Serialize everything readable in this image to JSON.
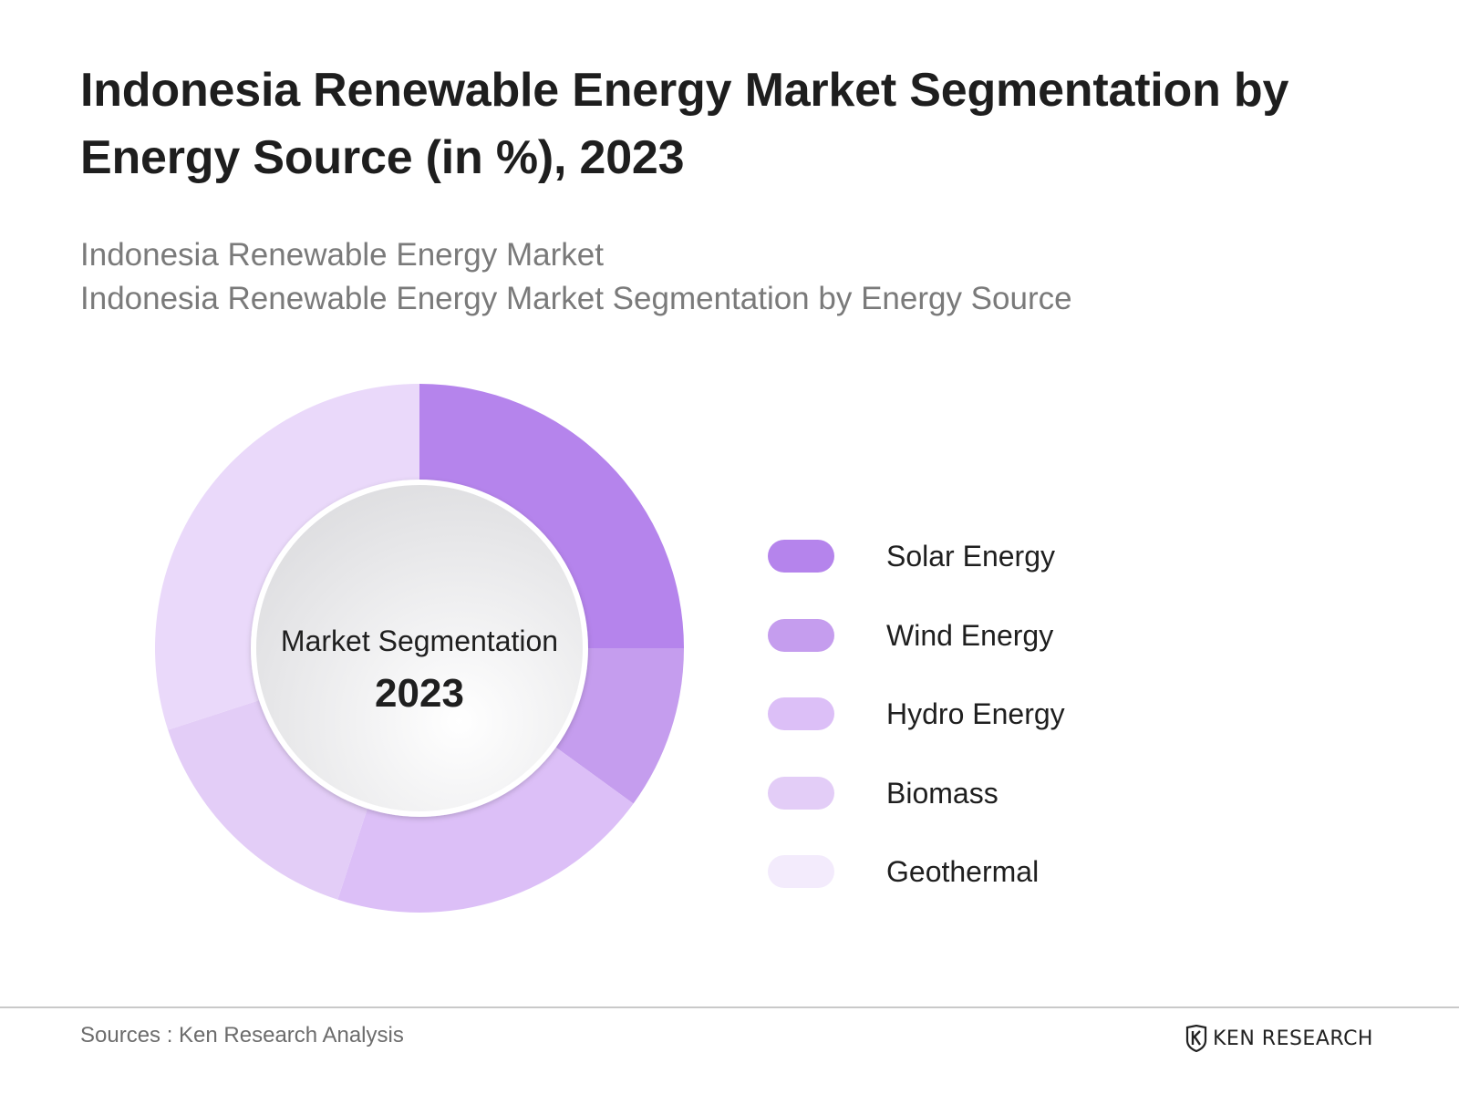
{
  "header": {
    "title": "Indonesia Renewable Energy Market Segmentation by Energy Source (in %), 2023",
    "subtitle_line1": "Indonesia Renewable Energy Market",
    "subtitle_line2": "Indonesia Renewable Energy Market Segmentation by Energy Source"
  },
  "chart_data": {
    "type": "pie",
    "variant": "donut",
    "title": "Indonesia Renewable Energy Market Segmentation by Energy Source (in %), 2023",
    "center_label": "Market Segmentation",
    "center_value": "2023",
    "categories": [
      "Solar Energy",
      "Wind Energy",
      "Hydro Energy",
      "Biomass",
      "Geothermal"
    ],
    "values": [
      25,
      10,
      20,
      15,
      30
    ],
    "unit": "%",
    "colors": [
      "#b584ec",
      "#c59dee",
      "#dcbff7",
      "#e3cdf7",
      "#ead9fa"
    ],
    "legend_position": "right"
  },
  "legend": {
    "swatch_colors": [
      "#b584ec",
      "#c59dee",
      "#dcbff7",
      "#e3cdf7",
      "#f3ebfc"
    ]
  },
  "footer": {
    "source": "Sources : Ken Research Analysis",
    "brand": "KEN RESEARCH"
  }
}
